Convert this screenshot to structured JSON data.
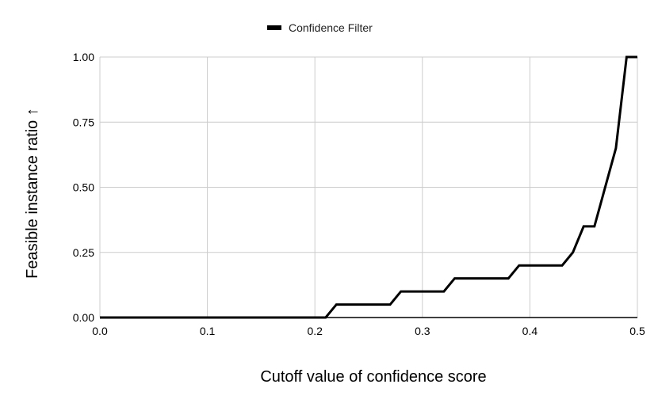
{
  "chart_data": {
    "type": "line",
    "title": "",
    "xlabel": "Cutoff value of confidence score",
    "ylabel": "Feasible instance ratio ↑",
    "xlim": [
      0.0,
      0.5
    ],
    "ylim": [
      0.0,
      1.0
    ],
    "x_ticks": [
      "0.0",
      "0.1",
      "0.2",
      "0.3",
      "0.4",
      "0.5"
    ],
    "y_ticks": [
      "0.00",
      "0.25",
      "0.50",
      "0.75",
      "1.00"
    ],
    "x_tick_values": [
      0.0,
      0.1,
      0.2,
      0.3,
      0.4,
      0.5
    ],
    "y_tick_values": [
      0.0,
      0.25,
      0.5,
      0.75,
      1.0
    ],
    "grid": true,
    "legend_position": "top-center",
    "series": [
      {
        "name": "Confidence Filter",
        "color": "#000000",
        "x": [
          0.0,
          0.21,
          0.22,
          0.27,
          0.28,
          0.32,
          0.33,
          0.38,
          0.39,
          0.43,
          0.44,
          0.45,
          0.46,
          0.48,
          0.49,
          0.5
        ],
        "y": [
          0.0,
          0.0,
          0.05,
          0.05,
          0.1,
          0.1,
          0.15,
          0.15,
          0.2,
          0.2,
          0.25,
          0.35,
          0.35,
          0.65,
          1.0,
          1.0
        ]
      }
    ]
  }
}
